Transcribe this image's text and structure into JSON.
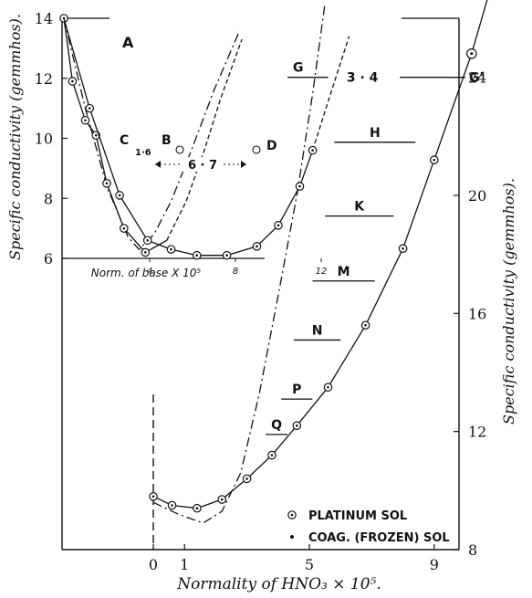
{
  "chart_data": {
    "type": "line",
    "xlabel": "Normality of HNO₃ × 10⁵.",
    "ylabel_left": "Specific conductivity (gemmhos).",
    "ylabel_right": "Specific conductivity (gemmhos).",
    "x_ticks": [
      "0",
      "1",
      "5",
      "9"
    ],
    "y_left_ticks": [
      "6",
      "8",
      "10",
      "12",
      "14"
    ],
    "y_right_ticks": [
      "8",
      "12",
      "16",
      "20",
      "24"
    ],
    "xlim": [
      -3.5,
      11.8
    ],
    "ylim_right": [
      8,
      26
    ],
    "legend": [
      {
        "symbol": "⊙",
        "label": "PLATINUM SOL"
      },
      {
        "symbol": "•",
        "label": "COAG. (FROZEN) SOL"
      }
    ],
    "series": [
      {
        "name": "PLATINUM SOL",
        "style": "solid-circles",
        "points": [
          [
            0.0,
            9.8
          ],
          [
            0.6,
            9.5
          ],
          [
            1.4,
            9.4
          ],
          [
            2.2,
            9.7
          ],
          [
            3.0,
            10.4
          ],
          [
            3.8,
            11.2
          ],
          [
            4.6,
            12.2
          ],
          [
            5.6,
            13.5
          ],
          [
            6.8,
            15.6
          ],
          [
            8.0,
            18.2
          ],
          [
            9.0,
            21.2
          ],
          [
            10.2,
            24.8
          ],
          [
            10.8,
            27.0
          ]
        ]
      },
      {
        "name": "COAG. (FROZEN) SOL",
        "style": "dash-dot",
        "points": [
          [
            0.0,
            9.6
          ],
          [
            0.8,
            9.2
          ],
          [
            1.6,
            8.9
          ],
          [
            2.2,
            9.3
          ],
          [
            2.8,
            10.6
          ],
          [
            3.4,
            13.3
          ],
          [
            4.0,
            16.6
          ],
          [
            4.6,
            20.0
          ],
          [
            5.1,
            23.4
          ],
          [
            5.5,
            26.5
          ]
        ]
      }
    ],
    "bands": [
      {
        "label": "G",
        "y": 24.0,
        "x1": 4.3,
        "x2": 10.0,
        "value_label": "3 · 4",
        "end_label": "G'"
      },
      {
        "label": "H",
        "y": 21.8,
        "x1": 5.8,
        "x2": 8.4
      },
      {
        "label": "K",
        "y": 19.3,
        "x1": 5.5,
        "x2": 7.7
      },
      {
        "label": "M",
        "y": 17.1,
        "x1": 5.1,
        "x2": 7.1
      },
      {
        "label": "N",
        "y": 15.1,
        "x1": 4.5,
        "x2": 6.0
      },
      {
        "label": "P",
        "y": 13.1,
        "x1": 4.1,
        "x2": 5.1
      },
      {
        "label": "Q",
        "y": 11.9,
        "x1": 3.6,
        "x2": 4.3
      }
    ],
    "inset": {
      "label": "A",
      "xlabel": "Norm. of base  X 10⁵",
      "x_ticks": [
        "4",
        "8",
        "12"
      ],
      "y_baseline": 6,
      "series": [
        {
          "name": "C",
          "style": "dash-dot",
          "points": [
            [
              0.0,
              14.0
            ],
            [
              1.0,
              11.0
            ],
            [
              2.0,
              8.4
            ],
            [
              3.0,
              6.7
            ],
            [
              3.5,
              6.3
            ],
            [
              4.2,
              6.8
            ],
            [
              5.0,
              7.9
            ],
            [
              6.0,
              9.7
            ],
            [
              7.0,
              11.6
            ],
            [
              8.2,
              13.6
            ]
          ]
        },
        {
          "name": "B",
          "style": "solid-circles",
          "points": [
            [
              0.0,
              14.0
            ],
            [
              0.4,
              11.9
            ],
            [
              1.0,
              10.6
            ],
            [
              1.5,
              10.1
            ],
            [
              2.0,
              8.5
            ],
            [
              2.8,
              7.0
            ],
            [
              3.8,
              6.2
            ],
            [
              4.8,
              6.6
            ],
            [
              5.7,
              7.9
            ],
            [
              6.5,
              9.5
            ],
            [
              7.3,
              11.3
            ],
            [
              8.3,
              13.3
            ]
          ]
        },
        {
          "name": "D",
          "style": "solid-circles",
          "points": [
            [
              0.0,
              14.0
            ],
            [
              1.2,
              11.0
            ],
            [
              2.6,
              8.1
            ],
            [
              3.9,
              6.6
            ],
            [
              5.0,
              6.3
            ],
            [
              6.2,
              6.1
            ],
            [
              7.6,
              6.1
            ],
            [
              9.0,
              6.4
            ],
            [
              10.0,
              7.1
            ],
            [
              11.0,
              8.4
            ],
            [
              11.6,
              9.6
            ],
            [
              12.4,
              11.4
            ],
            [
              13.3,
              13.4
            ]
          ]
        }
      ],
      "annotations": {
        "c_label": "C",
        "c_value": "1·6",
        "b_label": "B",
        "d_label": "D",
        "span_label": "6 · 7"
      }
    }
  }
}
